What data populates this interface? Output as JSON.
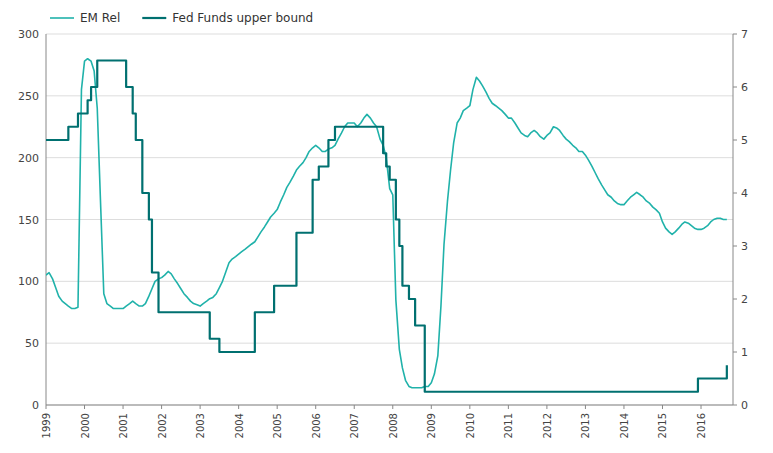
{
  "chart_data": {
    "type": "line",
    "xlim": [
      1999.0,
      2016.83
    ],
    "xticks": [
      1999,
      2000,
      2001,
      2002,
      2003,
      2004,
      2005,
      2006,
      2007,
      2008,
      2009,
      2010,
      2011,
      2012,
      2013,
      2014,
      2015,
      2016
    ],
    "ylim": [
      0,
      300
    ],
    "yticks": [
      0,
      50,
      100,
      150,
      200,
      250,
      300
    ],
    "y2lim": [
      0,
      7
    ],
    "y2ticks": [
      0,
      1,
      2,
      3,
      4,
      5,
      6,
      7
    ],
    "grid": true,
    "legend": "upper left",
    "series": [
      {
        "name": "EM Rel",
        "type": "line",
        "color": "#20B2AA",
        "x": [
          1999.0,
          1999.08,
          1999.17,
          1999.25,
          1999.33,
          1999.42,
          1999.5,
          1999.58,
          1999.67,
          1999.75,
          1999.83,
          1999.92,
          2000.0,
          2000.08,
          2000.17,
          2000.25,
          2000.33,
          2000.42,
          2000.5,
          2000.58,
          2000.67,
          2000.75,
          2000.83,
          2000.92,
          2001.0,
          2001.08,
          2001.17,
          2001.25,
          2001.33,
          2001.42,
          2001.5,
          2001.58,
          2001.67,
          2001.75,
          2001.83,
          2001.92,
          2002.0,
          2002.08,
          2002.17,
          2002.25,
          2002.33,
          2002.42,
          2002.5,
          2002.58,
          2002.67,
          2002.75,
          2002.83,
          2002.92,
          2003.0,
          2003.08,
          2003.17,
          2003.25,
          2003.33,
          2003.42,
          2003.5,
          2003.58,
          2003.67,
          2003.75,
          2003.83,
          2003.92,
          2004.0,
          2004.08,
          2004.17,
          2004.25,
          2004.33,
          2004.42,
          2004.5,
          2004.58,
          2004.67,
          2004.75,
          2004.83,
          2004.92,
          2005.0,
          2005.08,
          2005.17,
          2005.25,
          2005.33,
          2005.42,
          2005.5,
          2005.58,
          2005.67,
          2005.75,
          2005.83,
          2005.92,
          2006.0,
          2006.08,
          2006.17,
          2006.25,
          2006.33,
          2006.42,
          2006.5,
          2006.58,
          2006.67,
          2006.75,
          2006.83,
          2006.92,
          2007.0,
          2007.08,
          2007.17,
          2007.25,
          2007.33,
          2007.42,
          2007.5,
          2007.58,
          2007.67,
          2007.75,
          2007.83,
          2007.92,
          2008.0,
          2008.08,
          2008.17,
          2008.25,
          2008.33,
          2008.42,
          2008.5,
          2008.58,
          2008.67,
          2008.75,
          2008.83,
          2008.92,
          2009.0,
          2009.08,
          2009.17,
          2009.25,
          2009.33,
          2009.42,
          2009.5,
          2009.58,
          2009.67,
          2009.75,
          2009.83,
          2009.92,
          2010.0,
          2010.08,
          2010.17,
          2010.25,
          2010.33,
          2010.42,
          2010.5,
          2010.58,
          2010.67,
          2010.75,
          2010.83,
          2010.92,
          2011.0,
          2011.08,
          2011.17,
          2011.25,
          2011.33,
          2011.42,
          2011.5,
          2011.58,
          2011.67,
          2011.75,
          2011.83,
          2011.92,
          2012.0,
          2012.08,
          2012.17,
          2012.25,
          2012.33,
          2012.42,
          2012.5,
          2012.58,
          2012.67,
          2012.75,
          2012.83,
          2012.92,
          2013.0,
          2013.08,
          2013.17,
          2013.25,
          2013.33,
          2013.42,
          2013.5,
          2013.58,
          2013.67,
          2013.75,
          2013.83,
          2013.92,
          2014.0,
          2014.08,
          2014.17,
          2014.25,
          2014.33,
          2014.42,
          2014.5,
          2014.58,
          2014.67,
          2014.75,
          2014.83,
          2014.92,
          2015.0,
          2015.08,
          2015.17,
          2015.25,
          2015.33,
          2015.42,
          2015.5,
          2015.58,
          2015.67,
          2015.75,
          2015.83,
          2015.92,
          2016.0,
          2016.08,
          2016.17,
          2016.25,
          2016.33,
          2016.42,
          2016.5,
          2016.58,
          2016.67
        ],
        "values": [
          105,
          107,
          102,
          95,
          88,
          84,
          82,
          80,
          78,
          78,
          79,
          255,
          278,
          280,
          278,
          270,
          240,
          160,
          90,
          82,
          80,
          78,
          78,
          78,
          78,
          80,
          82,
          84,
          82,
          80,
          80,
          82,
          88,
          94,
          100,
          102,
          103,
          105,
          108,
          106,
          102,
          98,
          94,
          90,
          87,
          84,
          82,
          81,
          80,
          82,
          84,
          86,
          87,
          90,
          95,
          100,
          108,
          115,
          118,
          120,
          122,
          124,
          126,
          128,
          130,
          132,
          136,
          140,
          144,
          148,
          152,
          155,
          158,
          164,
          170,
          176,
          180,
          185,
          190,
          193,
          196,
          200,
          205,
          208,
          210,
          208,
          205,
          205,
          207,
          208,
          210,
          215,
          220,
          225,
          228,
          228,
          228,
          225,
          228,
          232,
          235,
          232,
          228,
          225,
          215,
          210,
          200,
          175,
          170,
          85,
          45,
          30,
          20,
          15,
          14,
          14,
          14,
          14,
          15,
          15,
          18,
          25,
          40,
          80,
          130,
          165,
          190,
          212,
          228,
          232,
          238,
          240,
          242,
          255,
          265,
          262,
          258,
          253,
          248,
          244,
          242,
          240,
          238,
          235,
          232,
          232,
          228,
          224,
          220,
          218,
          217,
          220,
          222,
          220,
          217,
          215,
          218,
          220,
          225,
          224,
          222,
          218,
          215,
          213,
          210,
          208,
          205,
          205,
          202,
          198,
          193,
          188,
          183,
          178,
          174,
          170,
          168,
          165,
          163,
          162,
          162,
          165,
          168,
          170,
          172,
          170,
          168,
          165,
          163,
          160,
          158,
          155,
          148,
          143,
          140,
          138,
          140,
          143,
          146,
          148,
          147,
          145,
          143,
          142,
          142,
          143,
          145,
          148,
          150,
          151,
          151,
          150,
          150
        ]
      },
      {
        "name": "Fed Funds upper bound",
        "type": "step",
        "color": "#007070",
        "axis": "y2",
        "x": [
          1999.0,
          1999.25,
          1999.58,
          1999.83,
          2000.0,
          2000.08,
          2000.17,
          2000.33,
          2000.5,
          2001.0,
          2001.08,
          2001.25,
          2001.33,
          2001.5,
          2001.67,
          2001.75,
          2001.92,
          2002.0,
          2002.92,
          2003.0,
          2003.25,
          2003.5,
          2003.92,
          2004.0,
          2004.42,
          2004.92,
          2005.0,
          2005.5,
          2005.92,
          2006.0,
          2006.08,
          2006.33,
          2006.5,
          2006.92,
          2007.0,
          2007.67,
          2007.75,
          2007.83,
          2007.92,
          2008.0,
          2008.08,
          2008.17,
          2008.25,
          2008.42,
          2008.58,
          2008.83,
          2008.92,
          2009.0,
          2009.92,
          2010.0,
          2010.92,
          2011.0,
          2011.92,
          2012.0,
          2012.92,
          2013.0,
          2013.92,
          2014.0,
          2014.92,
          2015.0,
          2015.83,
          2015.92,
          2016.0,
          2016.33,
          2016.67
        ],
        "values": [
          5.0,
          5.0,
          5.25,
          5.5,
          5.5,
          5.75,
          6.0,
          6.5,
          6.5,
          6.5,
          6.0,
          5.5,
          5.0,
          4.0,
          3.5,
          2.5,
          1.75,
          1.75,
          1.75,
          1.75,
          1.25,
          1.0,
          1.0,
          1.0,
          1.75,
          2.25,
          2.25,
          3.25,
          4.25,
          4.25,
          4.5,
          5.0,
          5.25,
          5.25,
          5.25,
          5.25,
          4.75,
          4.5,
          4.25,
          4.25,
          3.5,
          3.0,
          2.25,
          2.0,
          1.5,
          0.25,
          0.25,
          0.25,
          0.25,
          0.25,
          0.25,
          0.25,
          0.25,
          0.25,
          0.25,
          0.25,
          0.25,
          0.25,
          0.25,
          0.25,
          0.25,
          0.5,
          0.5,
          0.5,
          0.75
        ]
      }
    ]
  }
}
